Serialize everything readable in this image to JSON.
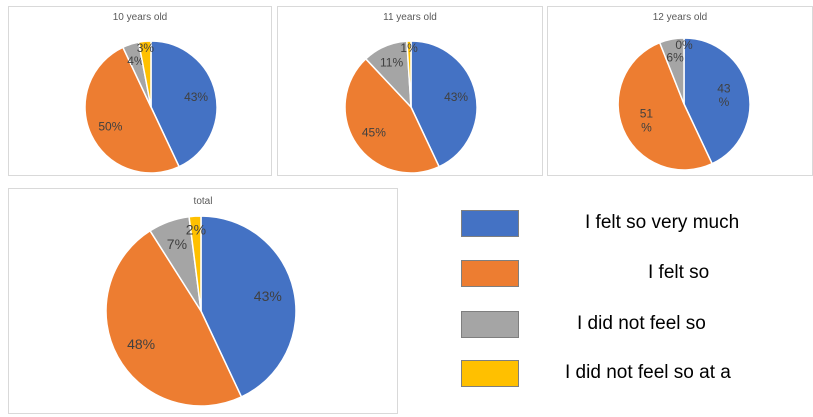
{
  "colors": [
    "#4472c4",
    "#ed7d31",
    "#a5a5a5",
    "#ffc000"
  ],
  "legend": [
    "I felt so very much",
    "I felt so",
    "I did not feel so",
    "I did not feel so at a"
  ],
  "chart_data": [
    {
      "type": "pie",
      "title": "10 years old",
      "categories": [
        "I felt so very much",
        "I felt so",
        "I did not feel so",
        "I did not feel so at all"
      ],
      "values": [
        43,
        50,
        4,
        3
      ],
      "labels": [
        "43%",
        "50%",
        "4%",
        "3%"
      ]
    },
    {
      "type": "pie",
      "title": "11 years old",
      "categories": [
        "I felt so very much",
        "I felt so",
        "I did not feel so",
        "I did not feel so at all"
      ],
      "values": [
        43,
        45,
        11,
        1
      ],
      "labels": [
        "43%",
        "45%",
        "11%",
        "1%"
      ]
    },
    {
      "type": "pie",
      "title": "12 years old",
      "categories": [
        "I felt so very much",
        "I felt so",
        "I did not feel so",
        "I did not feel so at all"
      ],
      "values": [
        43,
        51,
        6,
        0
      ],
      "labels": [
        "43\n%",
        "51\n%",
        "6%",
        "0%"
      ]
    },
    {
      "type": "pie",
      "title": "total",
      "categories": [
        "I felt so very much",
        "I felt so",
        "I did not feel so",
        "I did not feel so at all"
      ],
      "values": [
        43,
        48,
        7,
        2
      ],
      "labels": [
        "43%",
        "48%",
        "7%",
        "2%"
      ]
    }
  ]
}
